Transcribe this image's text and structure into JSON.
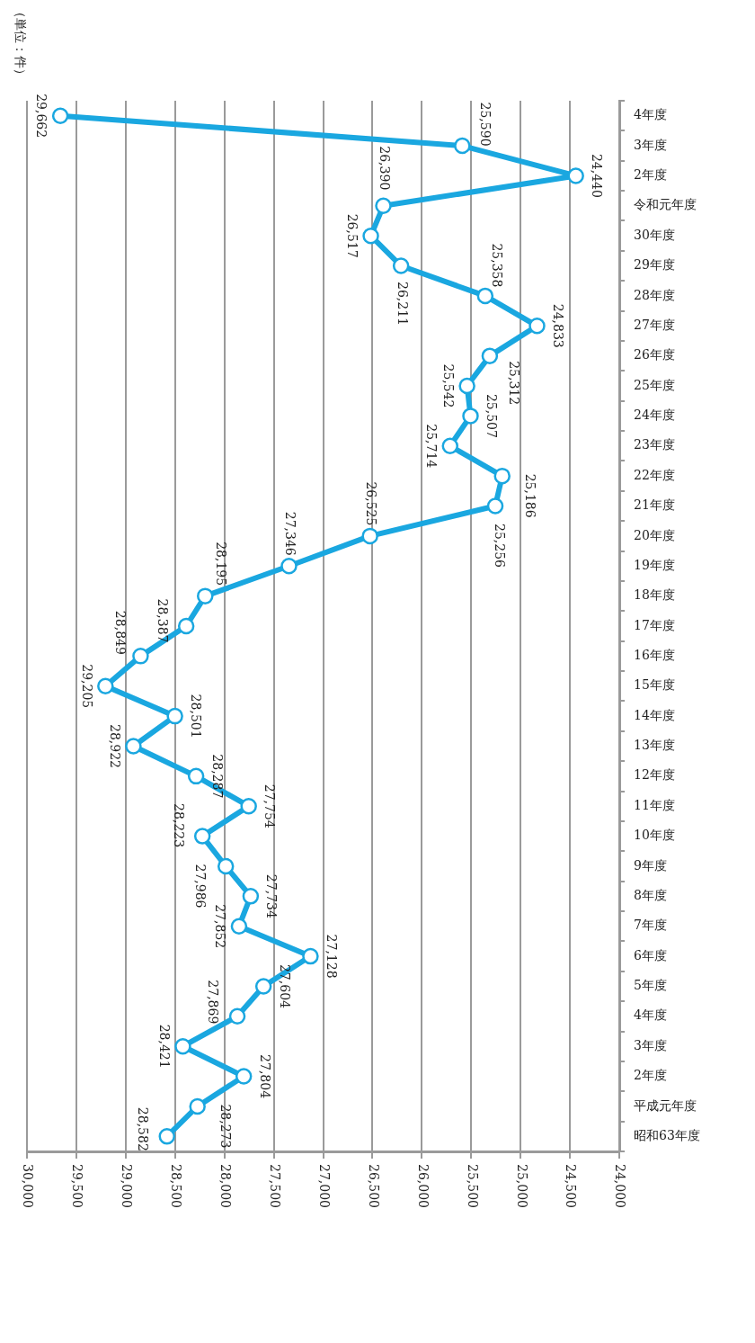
{
  "chart_data": {
    "type": "line",
    "orientation": "horizontal",
    "categories": [
      "4年度",
      "3年度",
      "2年度",
      "令和元年度",
      "30年度",
      "29年度",
      "28年度",
      "27年度",
      "26年度",
      "25年度",
      "24年度",
      "23年度",
      "22年度",
      "21年度",
      "20年度",
      "19年度",
      "18年度",
      "17年度",
      "16年度",
      "15年度",
      "14年度",
      "13年度",
      "12年度",
      "11年度",
      "10年度",
      "9年度",
      "8年度",
      "7年度",
      "6年度",
      "5年度",
      "4年度",
      "3年度",
      "2年度",
      "平成元年度",
      "昭和63年度"
    ],
    "values": [
      29662,
      25590,
      24440,
      26390,
      26517,
      26211,
      25358,
      24833,
      25312,
      25542,
      25507,
      25714,
      25186,
      25256,
      26525,
      27346,
      28195,
      28387,
      28849,
      29205,
      28501,
      28922,
      28287,
      27754,
      28223,
      27986,
      27734,
      27852,
      27128,
      27604,
      27869,
      28421,
      27804,
      28273,
      28582
    ],
    "value_labels": [
      "29,662",
      "25,590",
      "24,440",
      "26,390",
      "26,517",
      "26,211",
      "25,358",
      "24,833",
      "25,312",
      "25,542",
      "25,507",
      "25,714",
      "25,186",
      "25,256",
      "26,525",
      "27,346",
      "28,195",
      "28,387",
      "28,849",
      "29,205",
      "28,501",
      "28,922",
      "28,287",
      "27,754",
      "28,223",
      "27,986",
      "27,734",
      "27,852",
      "27,128",
      "27,604",
      "27,869",
      "28,421",
      "27,804",
      "28,273",
      "28,582"
    ],
    "color": "#1aa7e0",
    "xlim": [
      30000,
      24000
    ],
    "xticks": [
      {
        "value": 30000,
        "label": "30,000"
      },
      {
        "value": 29500,
        "label": "29,500"
      },
      {
        "value": 29000,
        "label": "29,000"
      },
      {
        "value": 28500,
        "label": "28,500"
      },
      {
        "value": 28000,
        "label": "28,000"
      },
      {
        "value": 27500,
        "label": "27,500"
      },
      {
        "value": 27000,
        "label": "27,000"
      },
      {
        "value": 26500,
        "label": "26,500"
      },
      {
        "value": 26000,
        "label": "26,000"
      },
      {
        "value": 25500,
        "label": "25,500"
      },
      {
        "value": 25000,
        "label": "25,000"
      },
      {
        "value": 24500,
        "label": "24,500"
      },
      {
        "value": 24000,
        "label": "24,000"
      }
    ],
    "grid": "x",
    "legend": false,
    "marker": "circle",
    "line_style": "solid",
    "annotations": [
      "（単位：件）"
    ]
  }
}
